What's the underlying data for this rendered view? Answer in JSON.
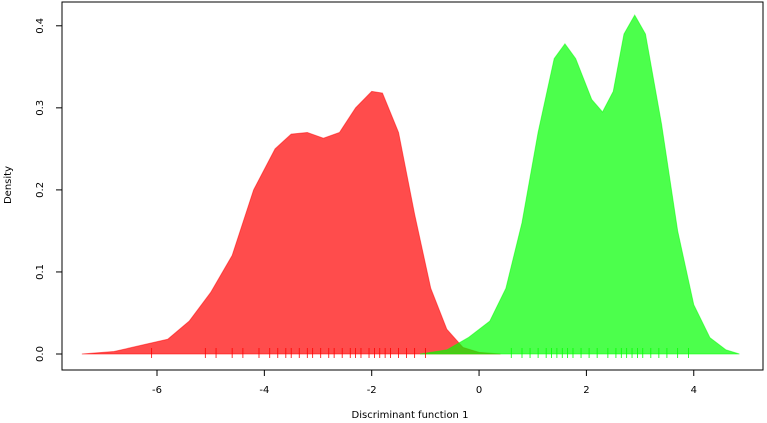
{
  "chart_data": {
    "type": "density",
    "xlabel": "Discriminant function 1",
    "ylabel": "Density",
    "xlim": [
      -7.77,
      5.29
    ],
    "ylim": [
      -0.0195,
      0.429
    ],
    "xticks": [
      -6,
      -4,
      -2,
      0,
      2,
      4
    ],
    "yticks": [
      {
        "value": 0,
        "label": "0.0"
      },
      0.1,
      0.2,
      0.3,
      0.4
    ],
    "series": [
      {
        "color": "#ff0000",
        "x": [
          -7.4,
          -6.8,
          -6.2,
          -5.8,
          -5.4,
          -5.0,
          -4.6,
          -4.2,
          -3.8,
          -3.5,
          -3.2,
          -2.9,
          -2.6,
          -2.3,
          -2.0,
          -1.8,
          -1.5,
          -1.2,
          -0.9,
          -0.6,
          -0.3,
          0.0,
          0.4
        ],
        "values": [
          0.0,
          0.003,
          0.012,
          0.018,
          0.04,
          0.075,
          0.12,
          0.2,
          0.25,
          0.268,
          0.27,
          0.263,
          0.27,
          0.3,
          0.32,
          0.318,
          0.27,
          0.17,
          0.08,
          0.03,
          0.008,
          0.002,
          0.0
        ],
        "rug": [
          -6.1,
          -5.1,
          -4.9,
          -4.6,
          -4.4,
          -4.1,
          -3.9,
          -3.75,
          -3.6,
          -3.5,
          -3.35,
          -3.2,
          -3.1,
          -2.95,
          -2.8,
          -2.7,
          -2.55,
          -2.4,
          -2.3,
          -2.2,
          -2.05,
          -1.95,
          -1.85,
          -1.75,
          -1.65,
          -1.5,
          -1.35,
          -1.2,
          -1.0
        ]
      },
      {
        "color": "#00ff00",
        "x": [
          -1.1,
          -0.6,
          -0.2,
          0.2,
          0.5,
          0.8,
          1.1,
          1.4,
          1.6,
          1.8,
          2.1,
          2.3,
          2.5,
          2.7,
          2.9,
          3.1,
          3.4,
          3.7,
          4.0,
          4.3,
          4.6,
          4.85
        ],
        "values": [
          0.0,
          0.005,
          0.02,
          0.04,
          0.08,
          0.16,
          0.27,
          0.36,
          0.378,
          0.36,
          0.31,
          0.295,
          0.32,
          0.39,
          0.413,
          0.39,
          0.28,
          0.15,
          0.06,
          0.02,
          0.005,
          0.0
        ],
        "rug": [
          0.6,
          0.8,
          0.95,
          1.1,
          1.25,
          1.35,
          1.45,
          1.55,
          1.65,
          1.75,
          1.9,
          2.05,
          2.2,
          2.4,
          2.55,
          2.65,
          2.75,
          2.85,
          2.95,
          3.05,
          3.2,
          3.35,
          3.5,
          3.7,
          3.9
        ]
      }
    ]
  }
}
